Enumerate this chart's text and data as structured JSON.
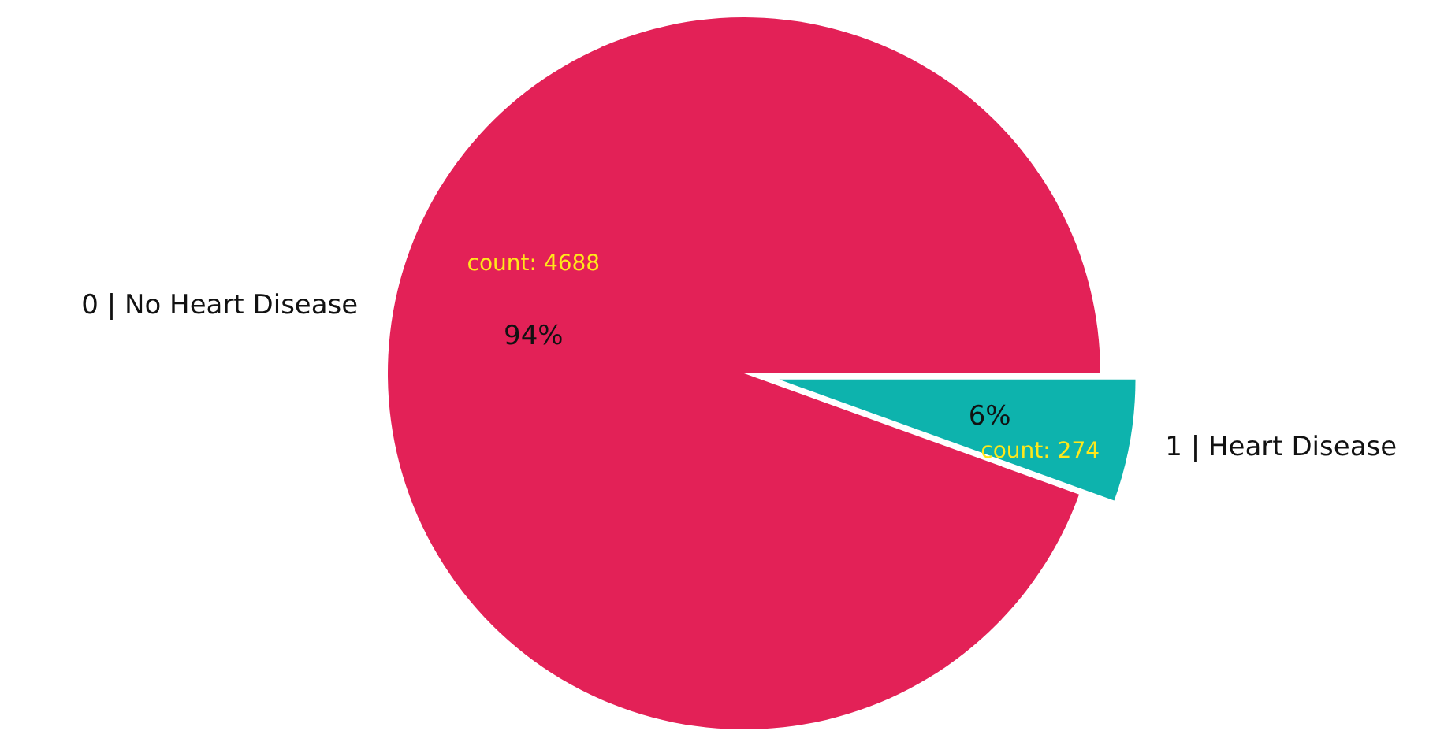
{
  "chart_data": {
    "type": "pie",
    "categories": [
      "0 | No Heart Disease",
      "1 | Heart Disease"
    ],
    "values": [
      4688,
      274
    ],
    "colors": [
      "#e32157",
      "#0db3ad"
    ],
    "value_labels": [
      "count: 4688",
      "count: 274"
    ],
    "annotations": [
      {
        "text": "94%",
        "x": "0 | No Heart Disease"
      },
      {
        "text": "6%",
        "x": "1 | Heart Disease"
      }
    ]
  }
}
